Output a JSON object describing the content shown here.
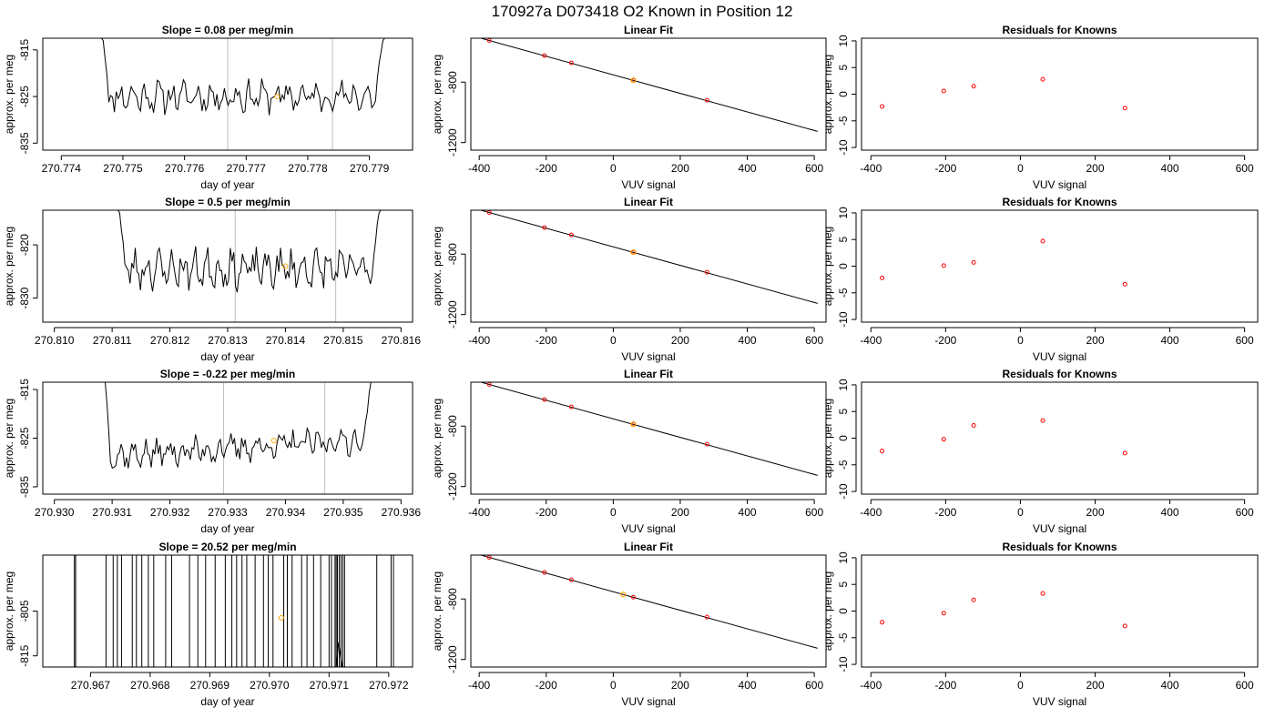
{
  "figure_title": "170927a     D073418   O2 Known in Position  12",
  "colors": {
    "trace": "#000000",
    "vline": "#bebebe",
    "highlight": "#ffa500",
    "residual": "#ff0000",
    "fit_point": "#ff0000"
  },
  "panel_labels": {
    "time_xlabel": "day of year",
    "time_ylabel": "approx. per meg",
    "fit_title": "Linear Fit",
    "fit_xlabel": "VUV signal",
    "fit_ylabel": "approx. per meg",
    "res_title": "Residuals for Knowns",
    "res_xlabel": "VUV signal",
    "res_ylabel": "approx. per meg"
  },
  "chart_data": [
    {
      "type": "line",
      "title": "Slope =  0.08  per meg/min",
      "xlabel": "day of year",
      "ylabel": "approx. per meg",
      "xlim": [
        270.7737,
        270.7797
      ],
      "ylim": [
        -836.5,
        -812.5
      ],
      "x_ticks": [
        "270.774",
        "270.775",
        "270.776",
        "270.777",
        "270.778",
        "270.779"
      ],
      "x_tick_values": [
        270.774,
        270.775,
        270.776,
        270.777,
        270.778,
        270.779
      ],
      "y_ticks": [
        "-815",
        "-825",
        "-835"
      ],
      "y_tick_values": [
        -815,
        -825,
        -835
      ],
      "trace": {
        "x_start": 270.7746,
        "x_end": 270.7793,
        "mean": -825.0,
        "amplitude": 2.6,
        "seed": 11,
        "edge_start": 270.77468,
        "edge_end": 270.77922,
        "edge_top": -813.0
      },
      "vlines": [
        270.7767,
        270.7784
      ],
      "highlight": {
        "x": 270.7775,
        "y": -825.0
      }
    },
    {
      "type": "line",
      "title": "Slope =  0.5  per meg/min",
      "xlabel": "day of year",
      "ylabel": "approx. per meg",
      "xlim": [
        270.8098,
        270.8162
      ],
      "ylim": [
        -834.5,
        -813.5
      ],
      "x_ticks": [
        "270.810",
        "270.811",
        "270.812",
        "270.813",
        "270.814",
        "270.815",
        "270.816"
      ],
      "x_tick_values": [
        270.81,
        270.811,
        270.812,
        270.813,
        270.814,
        270.815,
        270.816
      ],
      "y_ticks": [
        "-820",
        "-830"
      ],
      "y_tick_values": [
        -820,
        -830
      ],
      "trace": {
        "x_start": 270.81105,
        "x_end": 270.8157,
        "mean": -824.5,
        "amplitude": 2.8,
        "seed": 23,
        "edge_start": 270.81113,
        "edge_end": 270.81562,
        "edge_top": -814.0
      },
      "vlines": [
        270.81313,
        270.81487
      ],
      "highlight": {
        "x": 270.814,
        "y": -824.0
      }
    },
    {
      "type": "line",
      "title": "Slope =  -0.22  per meg/min",
      "xlabel": "day of year",
      "ylabel": "approx. per meg",
      "xlim": [
        270.9298,
        270.9362
      ],
      "ylim": [
        -836.5,
        -813.5
      ],
      "x_ticks": [
        "270.930",
        "270.931",
        "270.932",
        "270.933",
        "270.934",
        "270.935",
        "270.936"
      ],
      "x_tick_values": [
        270.93,
        270.931,
        270.932,
        270.933,
        270.934,
        270.935,
        270.936
      ],
      "y_ticks": [
        "-815",
        "-825",
        "-835"
      ],
      "y_tick_values": [
        -815,
        -825,
        -835
      ],
      "trace": {
        "x_start": 270.9308,
        "x_end": 270.9355,
        "mean": -827.0,
        "amplitude": 2.2,
        "seed": 37,
        "trend": 3.5,
        "edge_start": 270.93088,
        "edge_end": 270.93548,
        "edge_top": -813.5
      },
      "vlines": [
        270.93293,
        270.93468
      ],
      "highlight": {
        "x": 270.9338,
        "y": -825.5
      }
    },
    {
      "type": "line",
      "title": "Slope =  20.52  per meg/min",
      "xlabel": "day of year",
      "ylabel": "approx. per meg",
      "xlim": [
        270.9662,
        270.9724
      ],
      "ylim": [
        -817.5,
        -792.5
      ],
      "x_ticks": [
        "270.967",
        "270.968",
        "270.969",
        "270.970",
        "270.971",
        "270.972"
      ],
      "x_tick_values": [
        270.967,
        270.968,
        270.969,
        270.97,
        270.971,
        270.972
      ],
      "y_ticks": [
        "-805",
        "-815"
      ],
      "y_tick_values": [
        -805,
        -815
      ],
      "spikes": [
        270.96673,
        270.96675,
        270.96726,
        270.96738,
        270.96745,
        270.96752,
        270.9677,
        270.96777,
        270.96786,
        270.96797,
        270.96806,
        270.96826,
        270.96836,
        270.96866,
        270.9688,
        270.96893,
        270.96909,
        270.96926,
        270.96937,
        270.96945,
        270.96954,
        270.96962,
        270.96976,
        270.9699,
        270.96998,
        270.97006,
        270.97024,
        270.9703,
        270.97038,
        270.97054,
        270.97063,
        270.97074,
        270.97086,
        270.971,
        270.97104,
        270.9711,
        270.97112,
        270.97114,
        270.97117,
        270.9712,
        270.97123,
        270.97126,
        270.9718,
        270.97204,
        270.97208
      ],
      "highlight": {
        "x": 270.9702,
        "y": -806.5
      }
    },
    {
      "type": "scatter",
      "title": "Linear Fit",
      "xlabel": "VUV signal",
      "ylabel": "approx. per meg",
      "xlim": [
        -425,
        635
      ],
      "ylim": [
        -1250,
        -510
      ],
      "x_ticks": [
        "-400",
        "-200",
        "0",
        "200",
        "400",
        "600"
      ],
      "x_tick_values": [
        -400,
        -200,
        0,
        200,
        400,
        600
      ],
      "y_ticks": [
        "-800",
        "-1200"
      ],
      "y_tick_values": [
        -800,
        -1200
      ],
      "points": [
        [
          -370,
          -525
        ],
        [
          -205,
          -625
        ],
        [
          -125,
          -673
        ],
        [
          60,
          -788
        ],
        [
          280,
          -920
        ]
      ],
      "highlight": [
        60,
        -788
      ],
      "fit_line": {
        "slope": -0.613,
        "intercept": -752,
        "x_range": [
          -400,
          610
        ]
      }
    },
    {
      "type": "scatter",
      "title": "Linear Fit",
      "xlabel": "VUV signal",
      "ylabel": "approx. per meg",
      "xlim": [
        -425,
        635
      ],
      "ylim": [
        -1250,
        -510
      ],
      "x_ticks": [
        "-400",
        "-200",
        "0",
        "200",
        "400",
        "600"
      ],
      "x_tick_values": [
        -400,
        -200,
        0,
        200,
        400,
        600
      ],
      "y_ticks": [
        "-800",
        "-1200"
      ],
      "y_tick_values": [
        -800,
        -1200
      ],
      "points": [
        [
          -370,
          -525
        ],
        [
          -205,
          -625
        ],
        [
          -125,
          -673
        ],
        [
          60,
          -788
        ],
        [
          280,
          -920
        ]
      ],
      "highlight": [
        60,
        -788
      ],
      "fit_line": {
        "slope": -0.613,
        "intercept": -752,
        "x_range": [
          -400,
          610
        ]
      }
    },
    {
      "type": "scatter",
      "title": "Linear Fit",
      "xlabel": "VUV signal",
      "ylabel": "approx. per meg",
      "xlim": [
        -425,
        635
      ],
      "ylim": [
        -1250,
        -510
      ],
      "x_ticks": [
        "-400",
        "-200",
        "0",
        "200",
        "400",
        "600"
      ],
      "x_tick_values": [
        -400,
        -200,
        0,
        200,
        400,
        600
      ],
      "y_ticks": [
        "-800",
        "-1200"
      ],
      "y_tick_values": [
        -800,
        -1200
      ],
      "points": [
        [
          -370,
          -525
        ],
        [
          -205,
          -625
        ],
        [
          -125,
          -673
        ],
        [
          60,
          -788
        ],
        [
          280,
          -920
        ]
      ],
      "highlight": [
        60,
        -788
      ],
      "fit_line": {
        "slope": -0.613,
        "intercept": -752,
        "x_range": [
          -400,
          610
        ]
      }
    },
    {
      "type": "scatter",
      "title": "Linear Fit",
      "xlabel": "VUV signal",
      "ylabel": "approx. per meg",
      "xlim": [
        -425,
        635
      ],
      "ylim": [
        -1250,
        -510
      ],
      "x_ticks": [
        "-400",
        "-200",
        "0",
        "200",
        "400",
        "600"
      ],
      "x_tick_values": [
        -400,
        -200,
        0,
        200,
        400,
        600
      ],
      "y_ticks": [
        "-800",
        "-1200"
      ],
      "y_tick_values": [
        -800,
        -1200
      ],
      "points": [
        [
          -370,
          -525
        ],
        [
          -205,
          -625
        ],
        [
          -125,
          -673
        ],
        [
          60,
          -788
        ],
        [
          280,
          -920
        ]
      ],
      "highlight": [
        30,
        -770
      ],
      "fit_line": {
        "slope": -0.613,
        "intercept": -752,
        "x_range": [
          -400,
          610
        ]
      }
    },
    {
      "type": "scatter",
      "title": "Residuals for Knowns",
      "xlabel": "VUV signal",
      "ylabel": "approx. per meg",
      "xlim": [
        -425,
        635
      ],
      "ylim": [
        -10.5,
        10.5
      ],
      "x_ticks": [
        "-400",
        "-200",
        "0",
        "200",
        "400",
        "600"
      ],
      "x_tick_values": [
        -400,
        -200,
        0,
        200,
        400,
        600
      ],
      "y_ticks": [
        "-10",
        "-5",
        "0",
        "5",
        "10"
      ],
      "y_tick_values": [
        -10,
        -5,
        0,
        5,
        10
      ],
      "points": [
        [
          -370,
          -2.3
        ],
        [
          -205,
          0.6
        ],
        [
          -125,
          1.5
        ],
        [
          60,
          2.8
        ],
        [
          280,
          -2.6
        ]
      ]
    },
    {
      "type": "scatter",
      "title": "Residuals for Knowns",
      "xlabel": "VUV signal",
      "ylabel": "approx. per meg",
      "xlim": [
        -425,
        635
      ],
      "ylim": [
        -10.5,
        10.5
      ],
      "x_ticks": [
        "-400",
        "-200",
        "0",
        "200",
        "400",
        "600"
      ],
      "x_tick_values": [
        -400,
        -200,
        0,
        200,
        400,
        600
      ],
      "y_ticks": [
        "-10",
        "-5",
        "0",
        "5",
        "10"
      ],
      "y_tick_values": [
        -10,
        -5,
        0,
        5,
        10
      ],
      "points": [
        [
          -370,
          -2.2
        ],
        [
          -205,
          0.1
        ],
        [
          -125,
          0.7
        ],
        [
          60,
          4.7
        ],
        [
          280,
          -3.4
        ]
      ]
    },
    {
      "type": "scatter",
      "title": "Residuals for Knowns",
      "xlabel": "VUV signal",
      "ylabel": "approx. per meg",
      "xlim": [
        -425,
        635
      ],
      "ylim": [
        -10.5,
        10.5
      ],
      "x_ticks": [
        "-400",
        "-200",
        "0",
        "200",
        "400",
        "600"
      ],
      "x_tick_values": [
        -400,
        -200,
        0,
        200,
        400,
        600
      ],
      "y_ticks": [
        "-10",
        "-5",
        "0",
        "5",
        "10"
      ],
      "y_tick_values": [
        -10,
        -5,
        0,
        5,
        10
      ],
      "points": [
        [
          -370,
          -2.4
        ],
        [
          -205,
          -0.2
        ],
        [
          -125,
          2.4
        ],
        [
          60,
          3.3
        ],
        [
          280,
          -2.8
        ]
      ]
    },
    {
      "type": "scatter",
      "title": "Residuals for Knowns",
      "xlabel": "VUV signal",
      "ylabel": "approx. per meg",
      "xlim": [
        -425,
        635
      ],
      "ylim": [
        -10.5,
        10.5
      ],
      "x_ticks": [
        "-400",
        "-200",
        "0",
        "200",
        "400",
        "600"
      ],
      "x_tick_values": [
        -400,
        -200,
        0,
        200,
        400,
        600
      ],
      "y_ticks": [
        "-10",
        "-5",
        "0",
        "5",
        "10"
      ],
      "y_tick_values": [
        -10,
        -5,
        0,
        5,
        10
      ],
      "points": [
        [
          -370,
          -2.1
        ],
        [
          -205,
          -0.4
        ],
        [
          -125,
          2.1
        ],
        [
          60,
          3.3
        ],
        [
          280,
          -2.8
        ]
      ]
    }
  ]
}
